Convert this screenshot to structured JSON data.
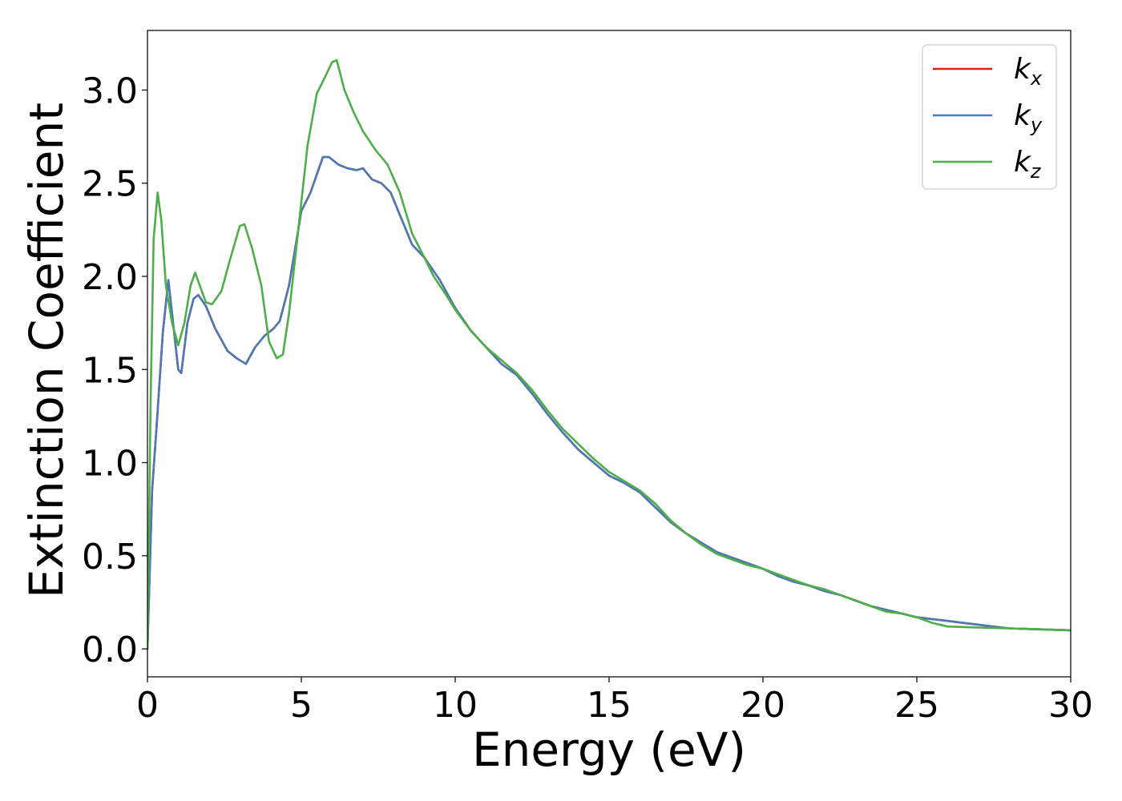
{
  "chart_data": {
    "type": "line",
    "title": "",
    "xlabel": "Energy (eV)",
    "ylabel": "Extinction Coefficient",
    "xlim": [
      0,
      30
    ],
    "ylim": [
      -0.15,
      3.32
    ],
    "xticks": [
      0,
      5,
      10,
      15,
      20,
      25,
      30
    ],
    "xtick_labels": [
      "0",
      "5",
      "10",
      "15",
      "20",
      "25",
      "30"
    ],
    "yticks": [
      0.0,
      0.5,
      1.0,
      1.5,
      2.0,
      2.5,
      3.0
    ],
    "ytick_labels": [
      "0.0",
      "0.5",
      "1.0",
      "1.5",
      "2.0",
      "2.5",
      "3.0"
    ],
    "grid": false,
    "legend_position": "top-right",
    "series": [
      {
        "name": "k_x",
        "label_base": "k",
        "label_sub": "x",
        "color": "#e41a1c",
        "points": [
          [
            0,
            0
          ],
          [
            0.15,
            0.85
          ],
          [
            0.3,
            1.2
          ],
          [
            0.5,
            1.7
          ],
          [
            0.68,
            1.98
          ],
          [
            0.8,
            1.8
          ],
          [
            1.0,
            1.5
          ],
          [
            1.1,
            1.48
          ],
          [
            1.3,
            1.75
          ],
          [
            1.5,
            1.88
          ],
          [
            1.65,
            1.9
          ],
          [
            1.9,
            1.84
          ],
          [
            2.2,
            1.72
          ],
          [
            2.6,
            1.6
          ],
          [
            2.9,
            1.56
          ],
          [
            3.2,
            1.53
          ],
          [
            3.5,
            1.62
          ],
          [
            3.8,
            1.68
          ],
          [
            4.1,
            1.72
          ],
          [
            4.3,
            1.76
          ],
          [
            4.6,
            1.95
          ],
          [
            5.0,
            2.35
          ],
          [
            5.3,
            2.45
          ],
          [
            5.7,
            2.64
          ],
          [
            5.9,
            2.64
          ],
          [
            6.2,
            2.6
          ],
          [
            6.5,
            2.58
          ],
          [
            6.8,
            2.57
          ],
          [
            7.0,
            2.58
          ],
          [
            7.3,
            2.52
          ],
          [
            7.6,
            2.5
          ],
          [
            7.9,
            2.45
          ],
          [
            8.2,
            2.33
          ],
          [
            8.6,
            2.17
          ],
          [
            9.0,
            2.1
          ],
          [
            9.5,
            1.98
          ],
          [
            10.0,
            1.83
          ],
          [
            10.5,
            1.71
          ],
          [
            11.0,
            1.62
          ],
          [
            11.5,
            1.53
          ],
          [
            12.0,
            1.47
          ],
          [
            12.5,
            1.37
          ],
          [
            13.0,
            1.26
          ],
          [
            13.5,
            1.16
          ],
          [
            14.0,
            1.07
          ],
          [
            14.5,
            1.0
          ],
          [
            15.0,
            0.93
          ],
          [
            15.5,
            0.89
          ],
          [
            16.0,
            0.84
          ],
          [
            16.5,
            0.76
          ],
          [
            17.0,
            0.68
          ],
          [
            17.5,
            0.62
          ],
          [
            18.0,
            0.57
          ],
          [
            18.5,
            0.52
          ],
          [
            19.0,
            0.49
          ],
          [
            19.5,
            0.46
          ],
          [
            20.0,
            0.43
          ],
          [
            20.5,
            0.39
          ],
          [
            21.0,
            0.36
          ],
          [
            21.5,
            0.34
          ],
          [
            22.0,
            0.31
          ],
          [
            22.5,
            0.29
          ],
          [
            23.0,
            0.26
          ],
          [
            23.5,
            0.23
          ],
          [
            24.0,
            0.21
          ],
          [
            24.5,
            0.19
          ],
          [
            25.0,
            0.17
          ],
          [
            25.5,
            0.16
          ],
          [
            26.0,
            0.15
          ],
          [
            27.0,
            0.13
          ],
          [
            28.0,
            0.11
          ],
          [
            29.0,
            0.105
          ],
          [
            30.0,
            0.1
          ]
        ]
      },
      {
        "name": "k_y",
        "label_base": "k",
        "label_sub": "y",
        "color": "#4a7ab5",
        "points": [
          [
            0,
            0
          ],
          [
            0.15,
            0.85
          ],
          [
            0.3,
            1.2
          ],
          [
            0.5,
            1.7
          ],
          [
            0.68,
            1.98
          ],
          [
            0.8,
            1.8
          ],
          [
            1.0,
            1.5
          ],
          [
            1.1,
            1.48
          ],
          [
            1.3,
            1.75
          ],
          [
            1.5,
            1.88
          ],
          [
            1.65,
            1.9
          ],
          [
            1.9,
            1.84
          ],
          [
            2.2,
            1.72
          ],
          [
            2.6,
            1.6
          ],
          [
            2.9,
            1.56
          ],
          [
            3.2,
            1.53
          ],
          [
            3.5,
            1.62
          ],
          [
            3.8,
            1.68
          ],
          [
            4.1,
            1.72
          ],
          [
            4.3,
            1.76
          ],
          [
            4.6,
            1.95
          ],
          [
            5.0,
            2.35
          ],
          [
            5.3,
            2.45
          ],
          [
            5.7,
            2.64
          ],
          [
            5.9,
            2.64
          ],
          [
            6.2,
            2.6
          ],
          [
            6.5,
            2.58
          ],
          [
            6.8,
            2.57
          ],
          [
            7.0,
            2.58
          ],
          [
            7.3,
            2.52
          ],
          [
            7.6,
            2.5
          ],
          [
            7.9,
            2.45
          ],
          [
            8.2,
            2.33
          ],
          [
            8.6,
            2.17
          ],
          [
            9.0,
            2.1
          ],
          [
            9.5,
            1.98
          ],
          [
            10.0,
            1.83
          ],
          [
            10.5,
            1.71
          ],
          [
            11.0,
            1.62
          ],
          [
            11.5,
            1.53
          ],
          [
            12.0,
            1.47
          ],
          [
            12.5,
            1.37
          ],
          [
            13.0,
            1.26
          ],
          [
            13.5,
            1.16
          ],
          [
            14.0,
            1.07
          ],
          [
            14.5,
            1.0
          ],
          [
            15.0,
            0.93
          ],
          [
            15.5,
            0.89
          ],
          [
            16.0,
            0.84
          ],
          [
            16.5,
            0.76
          ],
          [
            17.0,
            0.68
          ],
          [
            17.5,
            0.62
          ],
          [
            18.0,
            0.57
          ],
          [
            18.5,
            0.52
          ],
          [
            19.0,
            0.49
          ],
          [
            19.5,
            0.46
          ],
          [
            20.0,
            0.43
          ],
          [
            20.5,
            0.39
          ],
          [
            21.0,
            0.36
          ],
          [
            21.5,
            0.34
          ],
          [
            22.0,
            0.31
          ],
          [
            22.5,
            0.29
          ],
          [
            23.0,
            0.26
          ],
          [
            23.5,
            0.23
          ],
          [
            24.0,
            0.21
          ],
          [
            24.5,
            0.19
          ],
          [
            25.0,
            0.17
          ],
          [
            25.5,
            0.16
          ],
          [
            26.0,
            0.15
          ],
          [
            27.0,
            0.13
          ],
          [
            28.0,
            0.11
          ],
          [
            29.0,
            0.105
          ],
          [
            30.0,
            0.1
          ]
        ]
      },
      {
        "name": "k_z",
        "label_base": "k",
        "label_sub": "z",
        "color": "#4daf4a",
        "points": [
          [
            0,
            0
          ],
          [
            0.1,
            1.3
          ],
          [
            0.2,
            2.2
          ],
          [
            0.33,
            2.45
          ],
          [
            0.45,
            2.3
          ],
          [
            0.6,
            1.95
          ],
          [
            0.8,
            1.75
          ],
          [
            1.0,
            1.63
          ],
          [
            1.2,
            1.75
          ],
          [
            1.4,
            1.95
          ],
          [
            1.55,
            2.02
          ],
          [
            1.7,
            1.95
          ],
          [
            1.9,
            1.86
          ],
          [
            2.1,
            1.85
          ],
          [
            2.4,
            1.92
          ],
          [
            2.7,
            2.1
          ],
          [
            3.0,
            2.27
          ],
          [
            3.15,
            2.28
          ],
          [
            3.4,
            2.15
          ],
          [
            3.7,
            1.95
          ],
          [
            3.95,
            1.65
          ],
          [
            4.2,
            1.56
          ],
          [
            4.4,
            1.58
          ],
          [
            4.6,
            1.8
          ],
          [
            4.9,
            2.25
          ],
          [
            5.2,
            2.7
          ],
          [
            5.5,
            2.98
          ],
          [
            5.8,
            3.08
          ],
          [
            6.0,
            3.15
          ],
          [
            6.15,
            3.16
          ],
          [
            6.4,
            3.0
          ],
          [
            6.7,
            2.88
          ],
          [
            7.0,
            2.78
          ],
          [
            7.4,
            2.68
          ],
          [
            7.8,
            2.6
          ],
          [
            8.2,
            2.45
          ],
          [
            8.6,
            2.23
          ],
          [
            9.0,
            2.1
          ],
          [
            9.3,
            2.0
          ],
          [
            9.7,
            1.9
          ],
          [
            10.0,
            1.82
          ],
          [
            10.5,
            1.71
          ],
          [
            11.0,
            1.62
          ],
          [
            11.5,
            1.55
          ],
          [
            12.0,
            1.48
          ],
          [
            12.5,
            1.39
          ],
          [
            13.0,
            1.28
          ],
          [
            13.5,
            1.18
          ],
          [
            14.0,
            1.1
          ],
          [
            14.5,
            1.02
          ],
          [
            15.0,
            0.95
          ],
          [
            15.5,
            0.9
          ],
          [
            16.0,
            0.85
          ],
          [
            16.5,
            0.78
          ],
          [
            17.0,
            0.69
          ],
          [
            17.5,
            0.62
          ],
          [
            18.0,
            0.56
          ],
          [
            18.5,
            0.51
          ],
          [
            19.0,
            0.48
          ],
          [
            19.5,
            0.45
          ],
          [
            20.0,
            0.43
          ],
          [
            20.5,
            0.4
          ],
          [
            21.0,
            0.37
          ],
          [
            21.5,
            0.34
          ],
          [
            22.0,
            0.32
          ],
          [
            22.5,
            0.29
          ],
          [
            23.0,
            0.26
          ],
          [
            23.5,
            0.23
          ],
          [
            24.0,
            0.2
          ],
          [
            24.5,
            0.19
          ],
          [
            25.0,
            0.17
          ],
          [
            25.5,
            0.14
          ],
          [
            26.0,
            0.12
          ],
          [
            27.0,
            0.115
          ],
          [
            28.0,
            0.11
          ],
          [
            29.0,
            0.105
          ],
          [
            30.0,
            0.1
          ]
        ]
      }
    ]
  }
}
